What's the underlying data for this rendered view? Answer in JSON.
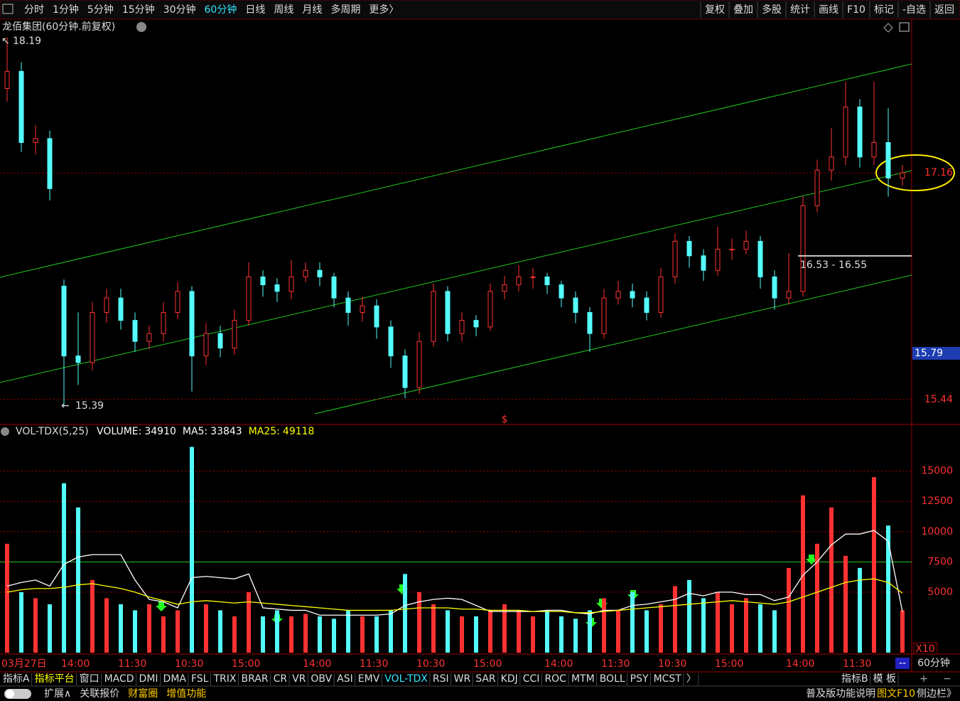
{
  "toolbar": {
    "periods": [
      "分时",
      "1分钟",
      "5分钟",
      "15分钟",
      "30分钟",
      "60分钟",
      "日线",
      "周线",
      "月线",
      "多周期",
      "更多〉"
    ],
    "active_index": 5,
    "buttons": [
      "复权",
      "叠加",
      "多股",
      "统计",
      "画线",
      "F10",
      "标记",
      "-自选",
      "返回"
    ]
  },
  "chart_data": [
    {
      "type": "candlestick",
      "title": "龙佰集团(60分钟.前复权)",
      "open": [
        17.8,
        17.93,
        17.39,
        17.42,
        16.3,
        15.77,
        15.72,
        16.1,
        16.21,
        16.04,
        15.88,
        15.94,
        16.1,
        16.26,
        15.77,
        15.94,
        15.83,
        16.04,
        16.37,
        16.31,
        16.26,
        16.37,
        16.42,
        16.37,
        16.21,
        16.1,
        16.15,
        15.99,
        15.77,
        15.53,
        15.88,
        16.26,
        15.94,
        16.04,
        15.99,
        16.26,
        16.31,
        16.37,
        16.37,
        16.31,
        16.21,
        16.1,
        15.94,
        16.21,
        16.26,
        16.21,
        16.1,
        16.37,
        16.64,
        16.53,
        16.42,
        16.58,
        16.58,
        16.64,
        16.37,
        16.21,
        16.26,
        16.91,
        17.18,
        17.28,
        17.66,
        17.28,
        17.39,
        17.12
      ],
      "high": [
        18.19,
        18.0,
        17.52,
        17.48,
        16.35,
        16.1,
        16.18,
        16.28,
        16.28,
        16.1,
        16.0,
        16.18,
        16.33,
        16.3,
        16.02,
        16.0,
        16.12,
        16.48,
        16.42,
        16.36,
        16.5,
        16.48,
        16.48,
        16.4,
        16.26,
        16.22,
        16.2,
        16.04,
        15.82,
        15.95,
        16.32,
        16.3,
        16.1,
        16.08,
        16.32,
        16.38,
        16.46,
        16.44,
        16.4,
        16.34,
        16.26,
        16.14,
        16.28,
        16.34,
        16.32,
        16.26,
        16.44,
        16.7,
        16.68,
        16.58,
        16.75,
        16.66,
        16.72,
        16.68,
        16.42,
        16.55,
        16.98,
        17.26,
        17.5,
        17.85,
        17.72,
        17.85,
        17.65,
        17.22
      ],
      "low": [
        17.7,
        17.32,
        17.3,
        16.95,
        15.39,
        15.55,
        15.66,
        16.02,
        15.97,
        15.8,
        15.82,
        15.88,
        16.05,
        15.5,
        15.7,
        15.76,
        15.78,
        16.0,
        16.22,
        16.18,
        16.2,
        16.33,
        16.3,
        16.14,
        16.0,
        16.03,
        15.9,
        15.68,
        15.45,
        15.48,
        15.84,
        15.88,
        15.88,
        15.92,
        15.96,
        16.2,
        16.26,
        16.28,
        16.24,
        16.14,
        16.02,
        15.8,
        15.9,
        16.16,
        16.14,
        16.04,
        16.06,
        16.32,
        16.44,
        16.34,
        16.38,
        16.5,
        16.54,
        16.28,
        16.12,
        16.16,
        16.22,
        16.86,
        17.1,
        17.22,
        17.2,
        17.22,
        16.98,
        17.06
      ],
      "close": [
        17.93,
        17.39,
        17.42,
        17.04,
        15.77,
        15.72,
        16.1,
        16.21,
        16.04,
        15.88,
        15.94,
        16.1,
        16.26,
        15.77,
        15.94,
        15.83,
        16.04,
        16.37,
        16.31,
        16.26,
        16.37,
        16.42,
        16.37,
        16.21,
        16.1,
        16.15,
        15.99,
        15.77,
        15.53,
        15.88,
        16.26,
        15.94,
        16.04,
        15.99,
        16.26,
        16.31,
        16.37,
        16.37,
        16.31,
        16.21,
        16.1,
        15.94,
        16.21,
        16.26,
        16.21,
        16.1,
        16.37,
        16.64,
        16.53,
        16.42,
        16.58,
        16.58,
        16.64,
        16.37,
        16.21,
        16.26,
        16.91,
        17.18,
        17.28,
        17.66,
        17.28,
        17.39,
        17.12,
        17.16
      ],
      "up_color": "#ff3232",
      "down_color": "#54fcfc",
      "ylim": [
        15.25,
        18.31
      ],
      "yticks": [
        15.44,
        17.16
      ],
      "cursor_price": 15.79,
      "high_mark": 18.19,
      "low_mark": 15.39,
      "range": {
        "label": "16.53 - 16.55",
        "low": 16.53,
        "high": 16.55
      }
    },
    {
      "type": "bar",
      "title": "VOL-TDX(5,25)",
      "indicators": [
        {
          "label": "VOLUME:",
          "value": 34910,
          "color": "#ffffff"
        },
        {
          "label": "MA5:",
          "value": 33843,
          "color": "#ffffff"
        },
        {
          "label": "MA25:",
          "value": 49118,
          "color": "#ffff00"
        }
      ],
      "categories": [
        "03月27日",
        null,
        null,
        null,
        null,
        "14:00",
        null,
        null,
        null,
        "11:30",
        null,
        null,
        null,
        "10:30",
        null,
        null,
        null,
        "15:00",
        null,
        null,
        null,
        null,
        "14:00",
        null,
        null,
        null,
        "11:30",
        null,
        null,
        null,
        "10:30",
        null,
        null,
        null,
        "15:00",
        null,
        null,
        null,
        null,
        "14:00",
        null,
        null,
        null,
        "11:30",
        null,
        null,
        null,
        "10:30",
        null,
        null,
        null,
        "15:00",
        null,
        null,
        null,
        null,
        "14:00",
        null,
        null,
        null,
        "11:30",
        null,
        null,
        null
      ],
      "values": [
        9000,
        5000,
        4500,
        4000,
        14000,
        12000,
        6000,
        4500,
        4000,
        3500,
        4000,
        3000,
        3500,
        17000,
        4000,
        3500,
        3000,
        5000,
        3000,
        3500,
        3000,
        3200,
        3000,
        2800,
        3500,
        3000,
        3000,
        3500,
        6500,
        5000,
        4000,
        3500,
        3000,
        3000,
        3500,
        4000,
        3500,
        3000,
        3500,
        3000,
        2800,
        3500,
        4500,
        3500,
        5000,
        3500,
        4000,
        5500,
        6000,
        4500,
        5000,
        4000,
        4500,
        4000,
        3500,
        7000,
        13000,
        9000,
        12000,
        8000,
        7000,
        14500,
        10500,
        3491
      ],
      "lines": [
        {
          "color": "#ffffff",
          "values": [
            5500,
            5800,
            6000,
            5500,
            7300,
            7900,
            8100,
            8100,
            8100,
            6000,
            4400,
            4200,
            3700,
            6200,
            6300,
            6200,
            6100,
            6500,
            3700,
            3600,
            3500,
            3500,
            3100,
            3100,
            3100,
            3100,
            3100,
            3200,
            3900,
            4200,
            4400,
            4500,
            4400,
            3900,
            3400,
            3400,
            3400,
            3400,
            3500,
            3500,
            3300,
            3200,
            3500,
            3500,
            3900,
            4000,
            4200,
            4400,
            4900,
            4700,
            5000,
            5000,
            4800,
            4800,
            4300,
            4600,
            6400,
            7500,
            8900,
            9800,
            9800,
            10100,
            9200,
            3384
          ]
        },
        {
          "color": "#ffff00",
          "values": [
            5000,
            5200,
            5300,
            5300,
            5400,
            5600,
            5700,
            5500,
            5300,
            5000,
            4600,
            4300,
            4000,
            4200,
            4300,
            4200,
            4100,
            4200,
            4100,
            4000,
            3900,
            3800,
            3700,
            3600,
            3500,
            3500,
            3500,
            3500,
            3600,
            3700,
            3700,
            3700,
            3600,
            3600,
            3500,
            3500,
            3500,
            3400,
            3400,
            3400,
            3300,
            3300,
            3400,
            3500,
            3600,
            3700,
            3800,
            3900,
            4000,
            4100,
            4200,
            4300,
            4200,
            4100,
            4000,
            4200,
            4600,
            5000,
            5400,
            5800,
            6000,
            6100,
            5800,
            4912
          ]
        }
      ],
      "ylim": [
        0,
        18800
      ],
      "yticks": [
        5000,
        7500,
        10000,
        12500,
        15000
      ],
      "reference_line": 7500,
      "unit_label": "X10"
    }
  ],
  "indicator_tabs": [
    "指标A",
    "指标平台",
    "窗口",
    "MACD",
    "DMI",
    "DMA",
    "FSL",
    "TRIX",
    "BRAR",
    "CR",
    "VR",
    "OBV",
    "ASI",
    "EMV",
    "VOL-TDX",
    "RSI",
    "WR",
    "SAR",
    "KDJ",
    "CCI",
    "ROC",
    "MTM",
    "BOLL",
    "PSY",
    "MCST",
    "〉",
    "指标B",
    "模 板"
  ],
  "indicator_active_index": 14,
  "period_label": "60分钟",
  "scroll_label": "--",
  "status_bar": {
    "left": [
      "扩展∧",
      "关联报价",
      "财富圈",
      "增值功能"
    ],
    "right": [
      "普及版功能说明",
      "图文F10",
      "侧边栏》"
    ]
  }
}
